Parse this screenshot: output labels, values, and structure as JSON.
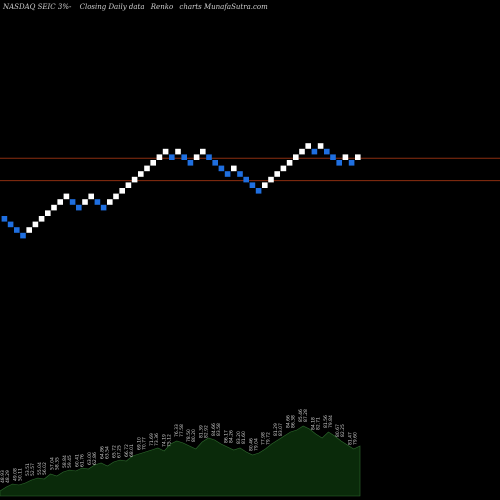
{
  "header": {
    "symbol": "NASDAQ SEIC",
    "fragment": "3%-",
    "chart_kind": "Closing Daily data",
    "chart_style": "Renko",
    "brand": "charts MunafaSutra.com"
  },
  "colors": {
    "background": "#000000",
    "up_brick": "#ffffff",
    "down_brick": "#1f6fe0",
    "level_line": "#8b2e10",
    "volume_fill": "#0a2a0a",
    "volume_edge": "#2e6b2e"
  },
  "chart_data": {
    "type": "renko",
    "bricks": [
      {
        "dir": "down",
        "level": 0
      },
      {
        "dir": "down",
        "level": -1
      },
      {
        "dir": "down",
        "level": -2
      },
      {
        "dir": "down",
        "level": -3
      },
      {
        "dir": "up",
        "level": -2
      },
      {
        "dir": "up",
        "level": -1
      },
      {
        "dir": "up",
        "level": 0
      },
      {
        "dir": "up",
        "level": 1
      },
      {
        "dir": "up",
        "level": 2
      },
      {
        "dir": "up",
        "level": 3
      },
      {
        "dir": "up",
        "level": 4
      },
      {
        "dir": "down",
        "level": 3
      },
      {
        "dir": "down",
        "level": 2
      },
      {
        "dir": "up",
        "level": 3
      },
      {
        "dir": "up",
        "level": 4
      },
      {
        "dir": "down",
        "level": 3
      },
      {
        "dir": "down",
        "level": 2
      },
      {
        "dir": "up",
        "level": 3
      },
      {
        "dir": "up",
        "level": 4
      },
      {
        "dir": "up",
        "level": 5
      },
      {
        "dir": "up",
        "level": 6
      },
      {
        "dir": "up",
        "level": 7
      },
      {
        "dir": "up",
        "level": 8
      },
      {
        "dir": "up",
        "level": 9
      },
      {
        "dir": "up",
        "level": 10
      },
      {
        "dir": "up",
        "level": 11
      },
      {
        "dir": "up",
        "level": 12
      },
      {
        "dir": "down",
        "level": 11
      },
      {
        "dir": "up",
        "level": 12
      },
      {
        "dir": "down",
        "level": 11
      },
      {
        "dir": "down",
        "level": 10
      },
      {
        "dir": "up",
        "level": 11
      },
      {
        "dir": "up",
        "level": 12
      },
      {
        "dir": "down",
        "level": 11
      },
      {
        "dir": "down",
        "level": 10
      },
      {
        "dir": "down",
        "level": 9
      },
      {
        "dir": "down",
        "level": 8
      },
      {
        "dir": "up",
        "level": 9
      },
      {
        "dir": "down",
        "level": 8
      },
      {
        "dir": "down",
        "level": 7
      },
      {
        "dir": "down",
        "level": 6
      },
      {
        "dir": "down",
        "level": 5
      },
      {
        "dir": "up",
        "level": 6
      },
      {
        "dir": "up",
        "level": 7
      },
      {
        "dir": "up",
        "level": 8
      },
      {
        "dir": "up",
        "level": 9
      },
      {
        "dir": "up",
        "level": 10
      },
      {
        "dir": "up",
        "level": 11
      },
      {
        "dir": "up",
        "level": 12
      },
      {
        "dir": "up",
        "level": 13
      },
      {
        "dir": "down",
        "level": 12
      },
      {
        "dir": "up",
        "level": 13
      },
      {
        "dir": "down",
        "level": 12
      },
      {
        "dir": "down",
        "level": 11
      },
      {
        "dir": "down",
        "level": 10
      },
      {
        "dir": "up",
        "level": 11
      },
      {
        "dir": "down",
        "level": 10
      },
      {
        "dir": "up",
        "level": 11
      }
    ],
    "levels": [
      11,
      7
    ],
    "volume": [
      5,
      9,
      12,
      11,
      13,
      16,
      18,
      17,
      22,
      20,
      24,
      26,
      25,
      28,
      27,
      31,
      33,
      30,
      34,
      36,
      35,
      40,
      42,
      44,
      46,
      48,
      45,
      52,
      55,
      53,
      50,
      47,
      54,
      58,
      56,
      52,
      49,
      46,
      48,
      44,
      41,
      43,
      47,
      52,
      56,
      60,
      64,
      66,
      70,
      67,
      62,
      58,
      64,
      60,
      55,
      51,
      47,
      50
    ],
    "volume_labels": [
      [
        "48.93",
        "48.29"
      ],
      [
        "49.08",
        "50.11"
      ],
      [
        "53.51",
        "52.57"
      ],
      [
        "55.04",
        "56.02"
      ],
      [
        "57.04",
        "58.35"
      ],
      [
        "58.84",
        "59.45"
      ],
      [
        "60.41",
        "61.76"
      ],
      [
        "63.00",
        "62.86"
      ],
      [
        "64.86",
        "63.54"
      ],
      [
        "65.72",
        "67.25"
      ],
      [
        "66.72",
        "68.01"
      ],
      [
        "69.10",
        "70.77"
      ],
      [
        "71.69",
        "73.36"
      ],
      [
        "74.19",
        "75.12"
      ],
      [
        "76.33",
        "77.58"
      ],
      [
        "78.50",
        "80.20"
      ],
      [
        "81.39",
        "82.92"
      ],
      [
        "84.66",
        "83.58"
      ],
      [
        "86.17",
        "84.26"
      ],
      [
        "83.20",
        "81.60"
      ],
      [
        "80.46",
        "79.04"
      ],
      [
        "77.98",
        "79.72"
      ],
      [
        "81.29",
        "83.07"
      ],
      [
        "84.66",
        "86.38"
      ],
      [
        "85.46",
        "87.28"
      ],
      [
        "84.18",
        "82.71"
      ],
      [
        "81.56",
        "79.84"
      ],
      [
        "80.67",
        "82.25"
      ],
      [
        "81.47",
        "79.60"
      ]
    ]
  }
}
